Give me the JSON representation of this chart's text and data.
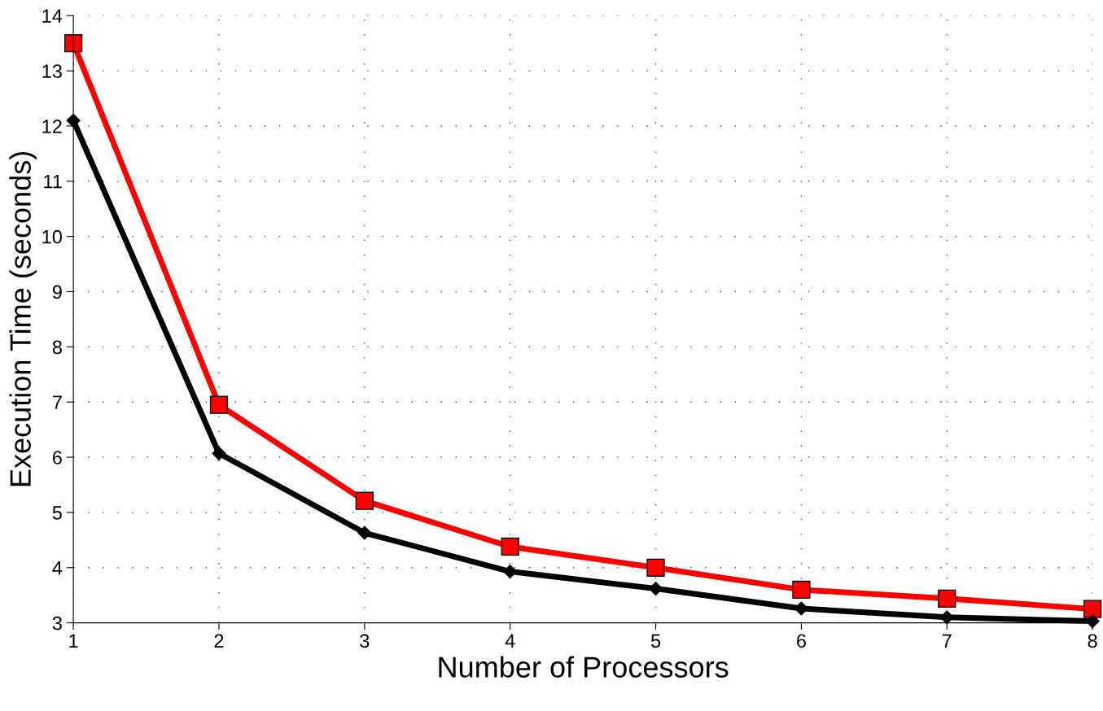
{
  "chart_data": {
    "type": "line",
    "xlabel": "Number of Processors",
    "ylabel": "Execution Time (seconds)",
    "x": [
      1,
      2,
      3,
      4,
      5,
      6,
      7,
      8
    ],
    "series": [
      {
        "color": "#ff0000",
        "marker": "square",
        "values": [
          13.5,
          6.95,
          5.21,
          4.38,
          4.0,
          3.6,
          3.44,
          3.25
        ]
      },
      {
        "color": "#000000",
        "marker": "diamond",
        "values": [
          12.1,
          6.07,
          4.63,
          3.93,
          3.62,
          3.26,
          3.1,
          3.03
        ]
      }
    ],
    "xlim": [
      1,
      8
    ],
    "xticks": [
      1,
      2,
      3,
      4,
      5,
      6,
      7,
      8
    ],
    "ylim": [
      3,
      14
    ],
    "yticks": [
      3,
      4,
      5,
      6,
      7,
      8,
      9,
      10,
      11,
      12,
      13,
      14
    ],
    "grid": true,
    "line_style": "solid"
  }
}
